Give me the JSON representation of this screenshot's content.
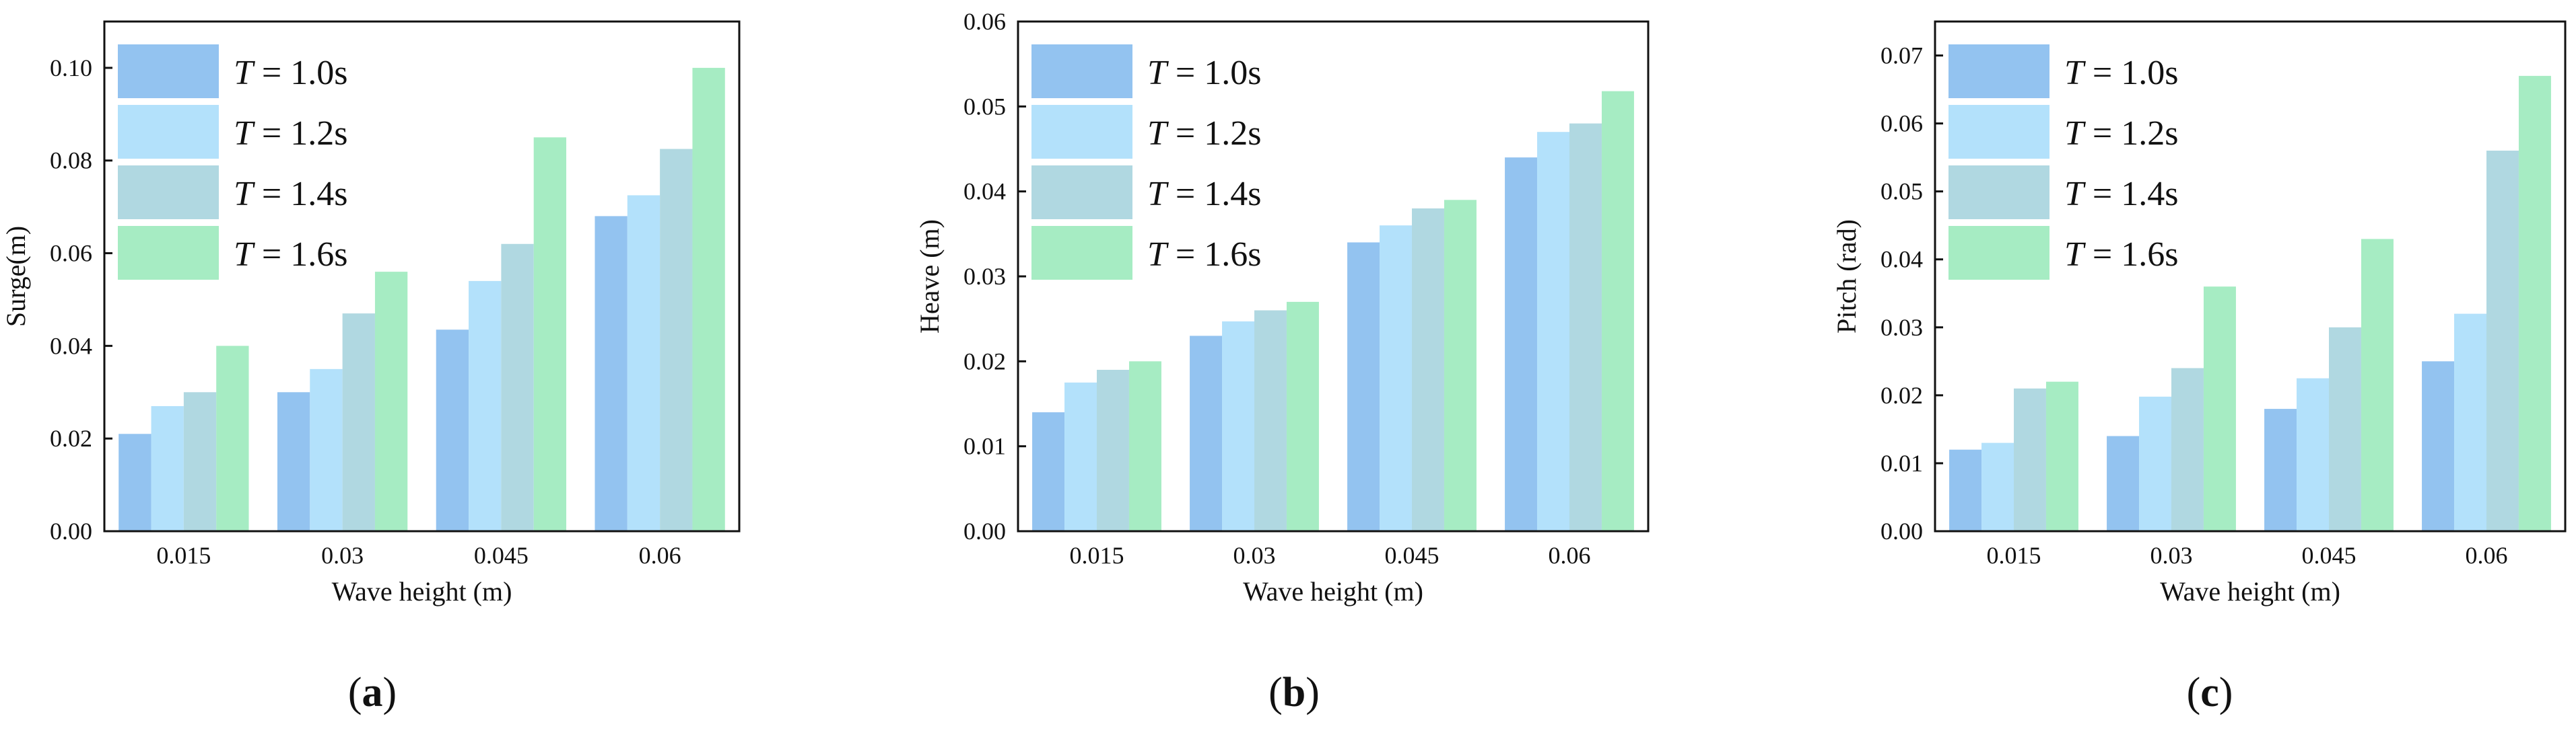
{
  "colors": {
    "series": [
      "#93c3f0",
      "#b3e1fb",
      "#b0d8e1",
      "#a6ecc3"
    ],
    "axis": "#111111"
  },
  "chart_data": [
    {
      "type": "bar",
      "panel_label": "(a)",
      "panel_letter": "a",
      "xlabel": "Wave height (m)",
      "ylabel": "Surge(m)",
      "categories": [
        "0.015",
        "0.03",
        "0.045",
        "0.06"
      ],
      "ylim": [
        0,
        0.11
      ],
      "yticks": [
        "0.00",
        "0.02",
        "0.04",
        "0.06",
        "0.08",
        "0.10"
      ],
      "legend_position": "top-left",
      "series": [
        {
          "name": "T = 1.0s",
          "symbol": "T",
          "label_rest": " = 1.0s",
          "values": [
            0.021,
            0.03,
            0.0435,
            0.068
          ]
        },
        {
          "name": "T = 1.2s",
          "symbol": "T",
          "label_rest": " = 1.2s",
          "values": [
            0.027,
            0.035,
            0.054,
            0.0725
          ]
        },
        {
          "name": "T = 1.4s",
          "symbol": "T",
          "label_rest": " = 1.4s",
          "values": [
            0.03,
            0.047,
            0.062,
            0.0825
          ]
        },
        {
          "name": "T = 1.6s",
          "symbol": "T",
          "label_rest": " = 1.6s",
          "values": [
            0.04,
            0.056,
            0.085,
            0.1
          ]
        }
      ]
    },
    {
      "type": "bar",
      "panel_label": "(b)",
      "panel_letter": "b",
      "xlabel": "Wave height (m)",
      "ylabel": "Heave (m)",
      "categories": [
        "0.015",
        "0.03",
        "0.045",
        "0.06"
      ],
      "ylim": [
        0,
        0.06
      ],
      "yticks": [
        "0.00",
        "0.01",
        "0.02",
        "0.03",
        "0.04",
        "0.05",
        "0.06"
      ],
      "legend_position": "top-left",
      "series": [
        {
          "name": "T = 1.0s",
          "symbol": "T",
          "label_rest": " = 1.0s",
          "values": [
            0.014,
            0.023,
            0.034,
            0.044
          ]
        },
        {
          "name": "T = 1.2s",
          "symbol": "T",
          "label_rest": " = 1.2s",
          "values": [
            0.0175,
            0.0247,
            0.036,
            0.047
          ]
        },
        {
          "name": "T = 1.4s",
          "symbol": "T",
          "label_rest": " = 1.4s",
          "values": [
            0.019,
            0.026,
            0.038,
            0.048
          ]
        },
        {
          "name": "T = 1.6s",
          "symbol": "T",
          "label_rest": " = 1.6s",
          "values": [
            0.02,
            0.027,
            0.039,
            0.0518
          ]
        }
      ]
    },
    {
      "type": "bar",
      "panel_label": "(c)",
      "panel_letter": "c",
      "xlabel": "Wave height (m)",
      "ylabel": "Pitch (rad)",
      "categories": [
        "0.015",
        "0.03",
        "0.045",
        "0.06"
      ],
      "ylim": [
        0,
        0.075
      ],
      "yticks": [
        "0.00",
        "0.01",
        "0.02",
        "0.03",
        "0.04",
        "0.05",
        "0.06",
        "0.07"
      ],
      "legend_position": "top-left",
      "series": [
        {
          "name": "T = 1.0s",
          "symbol": "T",
          "label_rest": " = 1.0s",
          "values": [
            0.012,
            0.014,
            0.018,
            0.025
          ]
        },
        {
          "name": "T = 1.2s",
          "symbol": "T",
          "label_rest": " = 1.2s",
          "values": [
            0.013,
            0.0198,
            0.0225,
            0.032
          ]
        },
        {
          "name": "T = 1.4s",
          "symbol": "T",
          "label_rest": " = 1.4s",
          "values": [
            0.021,
            0.024,
            0.03,
            0.056
          ]
        },
        {
          "name": "T = 1.6s",
          "symbol": "T",
          "label_rest": " = 1.6s",
          "values": [
            0.022,
            0.036,
            0.043,
            0.067
          ]
        }
      ]
    }
  ]
}
